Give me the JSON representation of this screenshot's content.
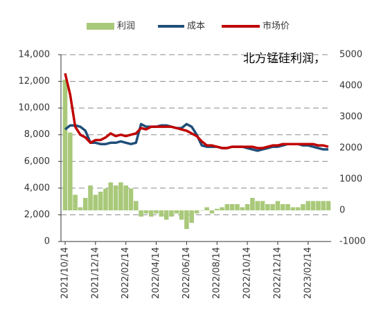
{
  "chart_data": {
    "type": "combo",
    "title": "北方锰硅利润，",
    "categories": [
      "2021/10/14",
      null,
      null,
      null,
      null,
      null,
      "2021/12/14",
      null,
      null,
      null,
      null,
      null,
      "2022/02/14",
      null,
      null,
      null,
      null,
      null,
      "2022/04/14",
      null,
      null,
      null,
      null,
      null,
      "2022/06/14",
      null,
      null,
      null,
      null,
      null,
      "2022/08/14",
      null,
      null,
      null,
      null,
      null,
      "2022/10/14",
      null,
      null,
      null,
      null,
      null,
      "2022/12/14",
      null,
      null,
      null,
      null,
      null,
      "2023/02/14",
      null,
      null,
      null,
      null
    ],
    "series": [
      {
        "name": "利润",
        "type": "bar",
        "axis": "y2",
        "color": "#a9c97a",
        "values": [
          4200,
          2500,
          500,
          100,
          400,
          800,
          500,
          600,
          700,
          900,
          800,
          900,
          800,
          700,
          300,
          -200,
          -100,
          -200,
          -100,
          -200,
          -300,
          -200,
          -100,
          -300,
          -600,
          -400,
          -100,
          0,
          100,
          -100,
          50,
          100,
          200,
          200,
          200,
          100,
          200,
          400,
          300,
          300,
          200,
          200,
          300,
          200,
          200,
          100,
          100,
          200,
          300,
          300,
          300,
          300,
          300
        ]
      },
      {
        "name": "成本",
        "type": "line",
        "color": "#1f4e79",
        "values": [
          8400,
          8700,
          8700,
          8600,
          8300,
          7400,
          7400,
          7300,
          7300,
          7400,
          7400,
          7500,
          7400,
          7300,
          7400,
          8800,
          8600,
          8600,
          8600,
          8700,
          8700,
          8600,
          8500,
          8500,
          8800,
          8600,
          8000,
          7200,
          7100,
          7100,
          7100,
          7000,
          7000,
          7100,
          7100,
          7100,
          7000,
          6900,
          6800,
          6900,
          7000,
          7100,
          7100,
          7200,
          7300,
          7300,
          7300,
          7200,
          7200,
          7100,
          7000,
          6900,
          6900
        ]
      },
      {
        "name": "市场价",
        "type": "line",
        "color": "#c00000",
        "values": [
          12600,
          11000,
          8600,
          8000,
          7800,
          7400,
          7600,
          7600,
          7800,
          8100,
          7900,
          8000,
          7900,
          8000,
          8100,
          8500,
          8400,
          8600,
          8600,
          8600,
          8600,
          8600,
          8500,
          8400,
          8300,
          8100,
          7900,
          7500,
          7200,
          7200,
          7100,
          7000,
          7000,
          7100,
          7100,
          7100,
          7100,
          7100,
          7000,
          7000,
          7100,
          7200,
          7200,
          7300,
          7300,
          7300,
          7300,
          7300,
          7300,
          7300,
          7200,
          7200,
          7100
        ]
      }
    ],
    "ylim": [
      0,
      14000
    ],
    "yticks": [
      0,
      {
        "value": 2000,
        "label": "2,000"
      },
      {
        "value": 4000,
        "label": "4,000"
      },
      {
        "value": 6000,
        "label": "6,000"
      },
      {
        "value": 8000,
        "label": "8,000"
      },
      {
        "value": 10000,
        "label": "10,000"
      },
      {
        "value": 12000,
        "label": "12,000"
      },
      {
        "value": 14000,
        "label": "14,000"
      }
    ],
    "y2lim": [
      -1000,
      5000
    ],
    "y2ticks": [
      -1000,
      0,
      1000,
      2000,
      3000,
      4000,
      5000
    ],
    "grid": true
  }
}
